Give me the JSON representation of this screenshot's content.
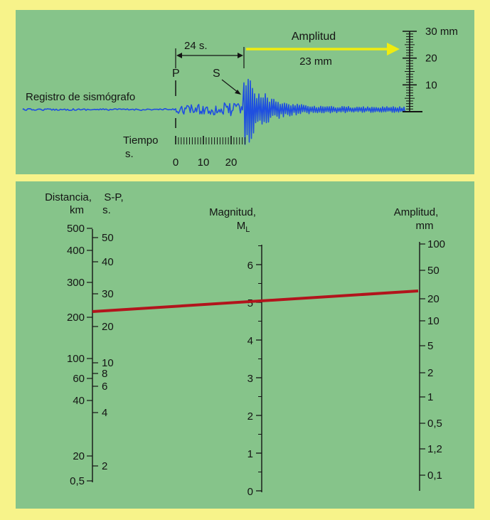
{
  "seismogram": {
    "trace_label": "Registro de sismógrafo",
    "p_label": "P",
    "s_label": "S",
    "interval_label": "24 s.",
    "amplitude_title": "Amplitud",
    "amplitude_value": "23 mm",
    "time_label_1": "Tiempo",
    "time_label_2": "s.",
    "time_ticks": [
      "0",
      "10",
      "20"
    ],
    "mm_scale_ticks": [
      {
        "value": 30,
        "label": "30 mm"
      },
      {
        "value": 20,
        "label": "20"
      },
      {
        "value": 10,
        "label": "10"
      }
    ]
  },
  "nomogram": {
    "distance_header_1": "Distancia,",
    "distance_header_2": "km",
    "sp_header_1": "S-P,",
    "sp_header_2": "s.",
    "magnitude_header": "Magnitud,",
    "magnitude_symbol": "M",
    "magnitude_subscript": "L",
    "amplitude_header_1": "Amplitud,",
    "amplitude_header_2": "mm",
    "distance_ticks": [
      "500",
      "400",
      "300",
      "200",
      "100",
      "60",
      "40",
      "20",
      "0,5"
    ],
    "sp_ticks": [
      "50",
      "40",
      "30",
      "20",
      "10",
      "8",
      "6",
      "4",
      "2"
    ],
    "magnitude_ticks": [
      "6",
      "5",
      "4",
      "3",
      "2",
      "1",
      "0"
    ],
    "amplitude_ticks": [
      "100",
      "50",
      "20",
      "10",
      "5",
      "2",
      "1",
      "0,5",
      "1,2",
      "0,1"
    ],
    "reading": {
      "sp_seconds": 24,
      "amplitude_mm": 23,
      "magnitude": 5.0
    }
  },
  "colors": {
    "frame": "#f7f38a",
    "panel": "#86c48a",
    "trace": "#1f4fe0",
    "arrow": "#f0ec10",
    "reading_line": "#b2141c",
    "ink": "#141414"
  }
}
